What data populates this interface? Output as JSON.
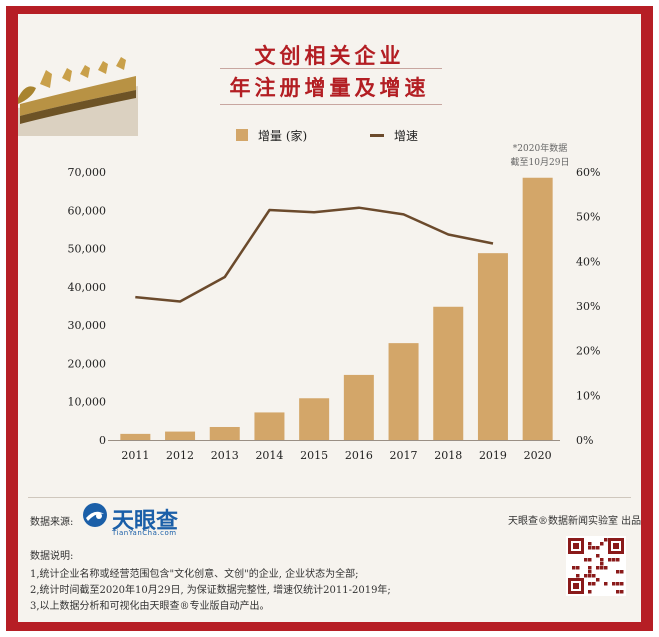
{
  "title": {
    "line1": "文创相关企业",
    "line2": "年注册增量及增速"
  },
  "legend": {
    "bar_label": "增量 (家)",
    "line_label": "增速"
  },
  "note": {
    "line1": "*2020年数据",
    "line2": "截至10月29日"
  },
  "colors": {
    "bar": "#d3a669",
    "line": "#6b4a2c",
    "frame": "#b61e25",
    "title": "#b31e23"
  },
  "chart_data": {
    "type": "bar",
    "categories": [
      "2011",
      "2012",
      "2013",
      "2014",
      "2015",
      "2016",
      "2017",
      "2018",
      "2019",
      "2020"
    ],
    "series": [
      {
        "name": "增量 (家)",
        "type": "bar",
        "axis": "left",
        "values": [
          1600,
          2200,
          3400,
          7200,
          10900,
          17000,
          25300,
          34800,
          48800,
          68500
        ]
      },
      {
        "name": "增速",
        "type": "line",
        "axis": "right",
        "values": [
          32,
          31,
          36.5,
          51.5,
          51,
          52,
          50.5,
          46,
          44,
          null
        ]
      }
    ],
    "left_axis": {
      "ylim": [
        0,
        70000
      ],
      "ticks": [
        "0",
        "10,000",
        "20,000",
        "30,000",
        "40,000",
        "50,000",
        "60,000",
        "70,000"
      ]
    },
    "right_axis": {
      "ylim": [
        0,
        60
      ],
      "ticks": [
        "0%",
        "10%",
        "20%",
        "30%",
        "40%",
        "50%",
        "60%"
      ]
    }
  },
  "footer": {
    "source_label": "数据来源:",
    "brand_name": "天眼查",
    "brand_domain": "TianYanCha.com",
    "credit": "天眼查®数据新闻实验室 出品",
    "notes_title": "数据说明:",
    "notes": [
      "1,统计企业名称或经营范围包含\"文化创意、文创\"的企业, 企业状态为全部;",
      "2,统计时间截至2020年10月29日, 为保证数据完整性, 增速仅统计2011-2019年;",
      "3,以上数据分析和可视化由天眼查®专业版自动产出。"
    ]
  }
}
